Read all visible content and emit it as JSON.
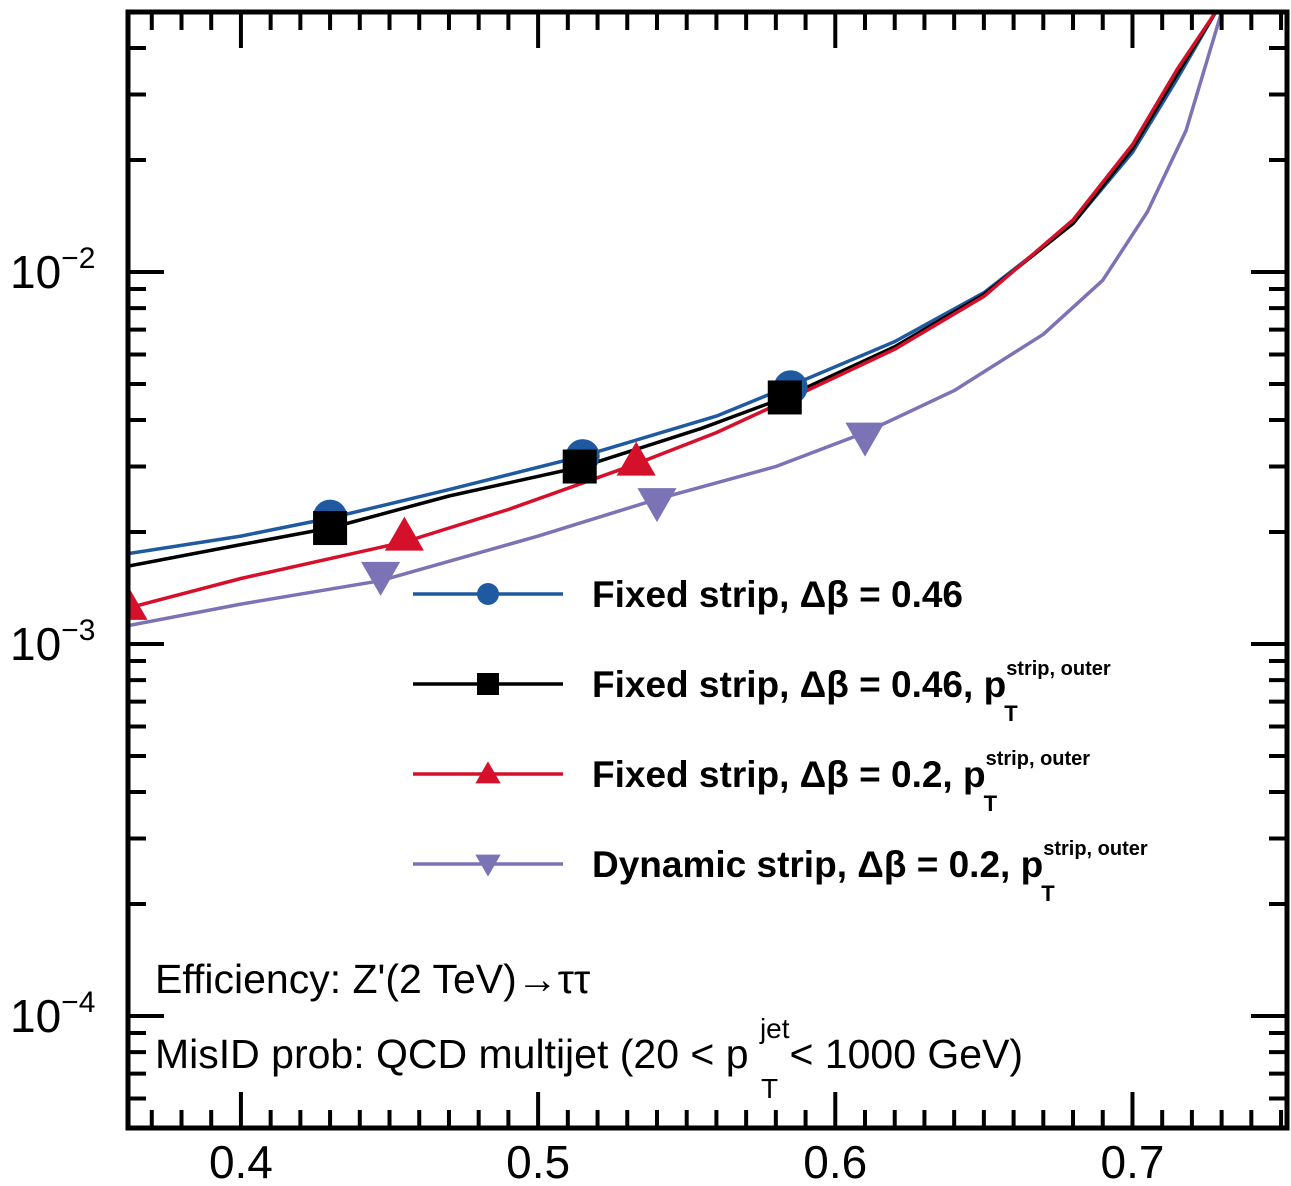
{
  "chart_data": {
    "type": "line",
    "title": "",
    "xlabel": "",
    "ylabel": "",
    "x_scale": "linear",
    "y_scale": "log",
    "xlim": [
      0.362,
      0.752
    ],
    "ylim": [
      5e-05,
      0.05
    ],
    "x_ticks": [
      0.4,
      0.5,
      0.6,
      0.7
    ],
    "x_tick_labels": [
      "0.4",
      "0.5",
      "0.6",
      "0.7"
    ],
    "y_tick_mantissa": "10",
    "y_tick_exponents": [
      "−2",
      "−3",
      "−4"
    ],
    "y_ticks": [
      0.01,
      0.001,
      0.0001
    ],
    "grid": false,
    "legend_position": "center-right",
    "series": [
      {
        "name": "Fixed strip, Δβ = 0.46",
        "color": "#1f5aa0",
        "marker": "circle",
        "x": [
          0.362,
          0.4,
          0.43,
          0.47,
          0.515,
          0.56,
          0.585,
          0.62,
          0.65,
          0.68,
          0.7,
          0.715,
          0.728
        ],
        "y": [
          0.00175,
          0.00195,
          0.00218,
          0.0026,
          0.0032,
          0.0041,
          0.00495,
          0.0065,
          0.0088,
          0.0135,
          0.021,
          0.033,
          0.05
        ],
        "marker_x": [
          0.43,
          0.515,
          0.585
        ],
        "marker_y": [
          0.0022,
          0.0032,
          0.0049
        ]
      },
      {
        "name": "Fixed strip, Δβ = 0.46, p",
        "name_sup": "strip, outer",
        "name_sub": "T",
        "color": "#000000",
        "marker": "square",
        "x": [
          0.362,
          0.4,
          0.43,
          0.47,
          0.515,
          0.555,
          0.583,
          0.62,
          0.65,
          0.68,
          0.7,
          0.715,
          0.728
        ],
        "y": [
          0.00162,
          0.00185,
          0.00205,
          0.0025,
          0.003,
          0.0038,
          0.0046,
          0.0063,
          0.0087,
          0.0135,
          0.0215,
          0.034,
          0.05
        ],
        "marker_x": [
          0.43,
          0.514,
          0.583
        ],
        "marker_y": [
          0.00205,
          0.003,
          0.0046
        ]
      },
      {
        "name": "Fixed strip, Δβ = 0.2, p",
        "name_sup": "strip, outer",
        "name_sub": "T",
        "color": "#d4102a",
        "marker": "triangle-up",
        "x": [
          0.362,
          0.4,
          0.455,
          0.49,
          0.533,
          0.56,
          0.583,
          0.62,
          0.65,
          0.68,
          0.7,
          0.715,
          0.728
        ],
        "y": [
          0.00125,
          0.0015,
          0.00188,
          0.0023,
          0.00305,
          0.0037,
          0.0045,
          0.0062,
          0.0086,
          0.0138,
          0.022,
          0.035,
          0.05
        ],
        "marker_x": [
          0.362,
          0.455,
          0.533
        ],
        "marker_y": [
          0.00127,
          0.00195,
          0.0031
        ]
      },
      {
        "name": "Dynamic strip, Δβ = 0.2, p",
        "name_sup": "strip, outer",
        "name_sub": "T",
        "color": "#7b73b5",
        "marker": "triangle-down",
        "x": [
          0.362,
          0.4,
          0.447,
          0.5,
          0.54,
          0.58,
          0.61,
          0.64,
          0.67,
          0.69,
          0.705,
          0.718,
          0.73
        ],
        "y": [
          0.00112,
          0.00128,
          0.00148,
          0.00195,
          0.00245,
          0.003,
          0.0037,
          0.0048,
          0.0068,
          0.0095,
          0.0145,
          0.024,
          0.05
        ],
        "marker_x": [
          0.447,
          0.54,
          0.61
        ],
        "marker_y": [
          0.00152,
          0.0024,
          0.0036
        ]
      }
    ],
    "annotations": {
      "efficiency": "Efficiency: Z'(2 TeV)→ττ",
      "misid_prefix": "MisID prob: QCD multijet (20 < p",
      "misid_sup": "jet",
      "misid_sub": "T",
      "misid_suffix": " < 1000 GeV)"
    }
  }
}
